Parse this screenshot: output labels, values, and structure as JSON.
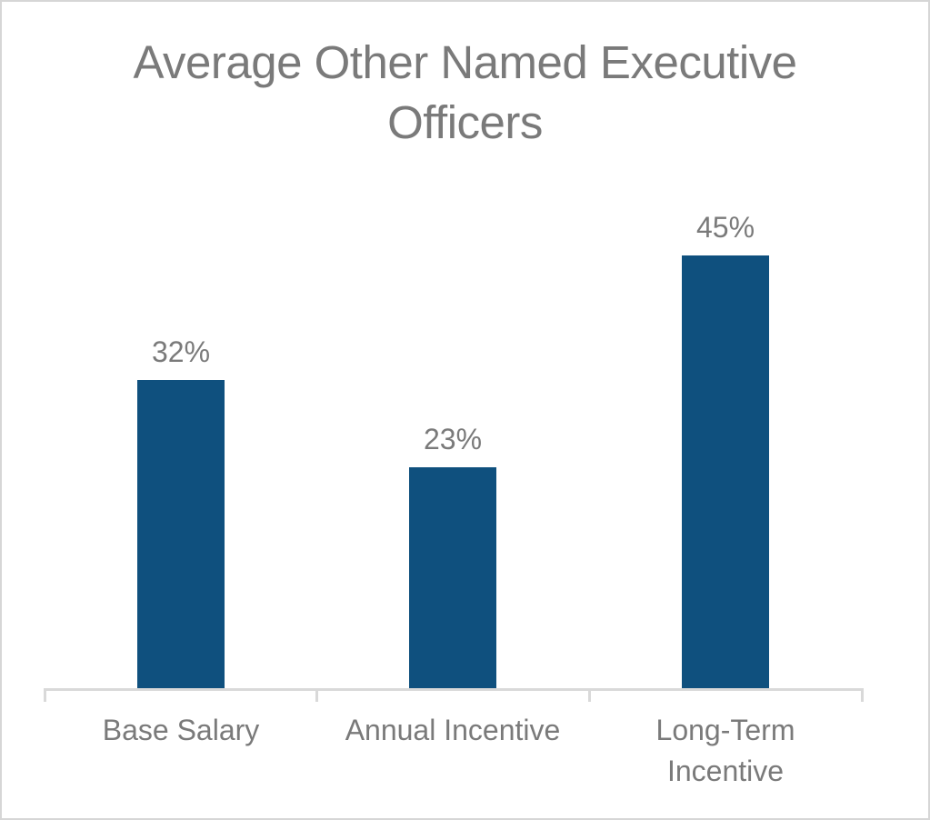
{
  "chart_data": {
    "type": "bar",
    "title": "Average Other Named Executive Officers",
    "categories": [
      "Base Salary",
      "Annual Incentive",
      "Long-Term Incentive"
    ],
    "values": [
      32,
      23,
      45
    ],
    "data_labels": [
      "32%",
      "23%",
      "45%"
    ],
    "unit": "%",
    "series": [
      {
        "name": "Average Other Named Executive Officers",
        "values": [
          32,
          23,
          45
        ]
      }
    ],
    "legend": "none",
    "gridlines": false,
    "y_axis_visible": false,
    "data_labels_position": "outside-end",
    "colors": {
      "bar": "#0f507e",
      "title_text": "#7a7a7a",
      "label_text": "#7a7a7a",
      "axis_line": "#d9d9d9",
      "border": "#d6d6d6",
      "background": "#ffffff"
    }
  }
}
